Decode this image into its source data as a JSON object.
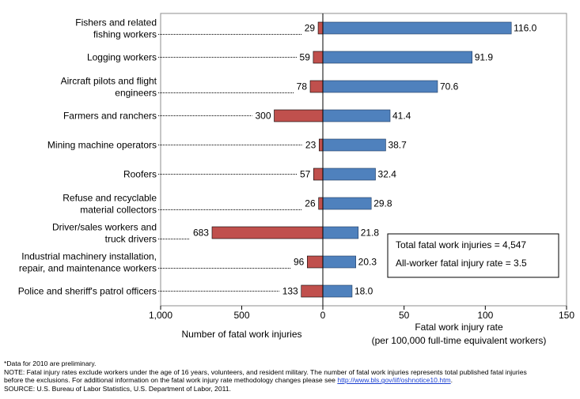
{
  "chart_data": {
    "type": "bar",
    "categories": [
      [
        "Fishers and related",
        "fishing workers"
      ],
      [
        "Logging workers"
      ],
      [
        "Aircraft pilots and flight",
        "engineers"
      ],
      [
        "Farmers and ranchers"
      ],
      [
        "Mining machine operators"
      ],
      [
        "Roofers"
      ],
      [
        "Refuse and recyclable",
        "material collectors"
      ],
      [
        "Driver/sales workers and",
        "truck drivers"
      ],
      [
        "Industrial machinery installation,",
        "repair, and maintenance workers"
      ],
      [
        "Police and sheriff's patrol officers"
      ]
    ],
    "series": [
      {
        "name": "Number of fatal work injuries",
        "color": "#c0504d",
        "values": [
          29,
          59,
          78,
          300,
          23,
          57,
          26,
          683,
          96,
          133
        ],
        "labels": [
          "29",
          "59",
          "78",
          "300",
          "23",
          "57",
          "26",
          "683",
          "96",
          "133"
        ]
      },
      {
        "name": "Fatal work injury rate",
        "color": "#4f81bd",
        "values": [
          116.0,
          91.9,
          70.6,
          41.4,
          38.7,
          32.4,
          29.8,
          21.8,
          20.3,
          18.0
        ],
        "labels": [
          "116.0",
          "91.9",
          "70.6",
          "41.4",
          "38.7",
          "32.4",
          "29.8",
          "21.8",
          "20.3",
          "18.0"
        ]
      }
    ],
    "left_axis": {
      "label": "Number of fatal work injuries",
      "lim": [
        1000,
        0
      ],
      "ticks": [
        1000,
        500,
        0
      ],
      "tick_labels": [
        "1,000",
        "500",
        "0"
      ]
    },
    "right_axis": {
      "label_lines": [
        "Fatal work injury rate",
        "(per 100,000 full-time equivalent workers)"
      ],
      "lim": [
        0,
        150
      ],
      "ticks": [
        50,
        100,
        150
      ],
      "tick_labels": [
        "50",
        "100",
        "150"
      ]
    },
    "annotation_box": [
      "Total fatal work injuries = 4,547",
      "All-worker fatal injury rate = 3.5"
    ],
    "grid": false,
    "legend": "none"
  },
  "footnotes": {
    "line1": "*Data for 2010 are preliminary.",
    "line2": "NOTE: Fatal injury rates exclude workers under the age of 16 years, volunteers, and resident military. The number of fatal work injuries represents total published fatal injuries",
    "line3_text": "before the exclusions. For additional information on the fatal work injury rate methodology changes please see ",
    "line3_link": "http://www.bls.gov/iif/oshnotice10.htm",
    "line3_end": ".",
    "line4": "SOURCE: U.S. Bureau of Labor Statistics, U.S. Department of Labor, 2011."
  }
}
